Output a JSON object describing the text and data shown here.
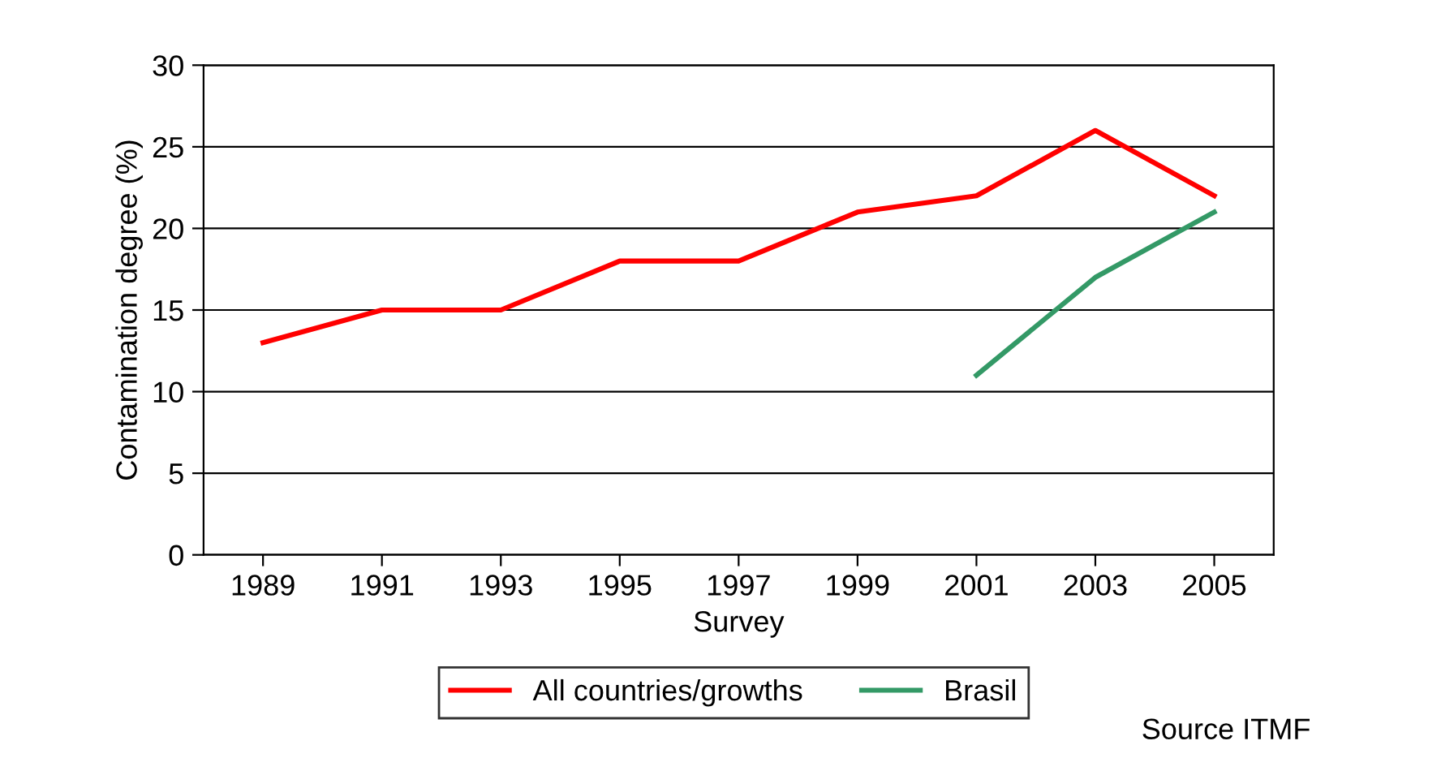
{
  "chart_data": {
    "type": "line",
    "xlabel": "Survey",
    "ylabel": "Contamination degree (%)",
    "categories": [
      "1989",
      "1991",
      "1993",
      "1995",
      "1997",
      "1999",
      "2001",
      "2003",
      "2005"
    ],
    "series": [
      {
        "name": "All countries/growths",
        "color": "#ff0000",
        "values": [
          13,
          15,
          15,
          18,
          18,
          21,
          22,
          26,
          22
        ]
      },
      {
        "name": "Brasil",
        "color": "#339966",
        "values": [
          null,
          null,
          null,
          null,
          null,
          null,
          11,
          17,
          21
        ]
      }
    ],
    "ylim": [
      0,
      30
    ],
    "yticks": [
      0,
      5,
      10,
      15,
      20,
      25,
      30
    ],
    "grid": "y",
    "legend": "bottom",
    "marker": "none",
    "line_style": "solid",
    "annotations": [
      "Source ITMF"
    ]
  }
}
